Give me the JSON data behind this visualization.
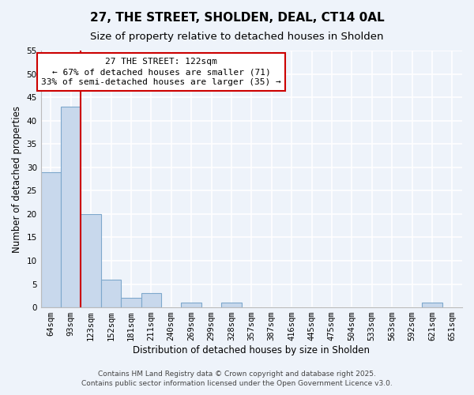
{
  "title": "27, THE STREET, SHOLDEN, DEAL, CT14 0AL",
  "subtitle": "Size of property relative to detached houses in Sholden",
  "xlabel": "Distribution of detached houses by size in Sholden",
  "ylabel": "Number of detached properties",
  "categories": [
    "64sqm",
    "93sqm",
    "123sqm",
    "152sqm",
    "181sqm",
    "211sqm",
    "240sqm",
    "269sqm",
    "299sqm",
    "328sqm",
    "357sqm",
    "387sqm",
    "416sqm",
    "445sqm",
    "475sqm",
    "504sqm",
    "533sqm",
    "563sqm",
    "592sqm",
    "621sqm",
    "651sqm"
  ],
  "values": [
    29,
    43,
    20,
    6,
    2,
    3,
    0,
    1,
    0,
    1,
    0,
    0,
    0,
    0,
    0,
    0,
    0,
    0,
    0,
    1,
    0
  ],
  "bar_color": "#c8d8ec",
  "bar_edge_color": "#7ea8cc",
  "highlight_line_color": "#cc0000",
  "annotation_title": "27 THE STREET: 122sqm",
  "annotation_line1": "← 67% of detached houses are smaller (71)",
  "annotation_line2": "33% of semi-detached houses are larger (35) →",
  "annotation_box_color": "#ffffff",
  "annotation_box_edge": "#cc0000",
  "ylim": [
    0,
    55
  ],
  "yticks": [
    0,
    5,
    10,
    15,
    20,
    25,
    30,
    35,
    40,
    45,
    50,
    55
  ],
  "footer1": "Contains HM Land Registry data © Crown copyright and database right 2025.",
  "footer2": "Contains public sector information licensed under the Open Government Licence v3.0.",
  "bg_color": "#eef3fa",
  "plot_bg_color": "#eef3fa",
  "grid_color": "#ffffff",
  "title_fontsize": 11,
  "subtitle_fontsize": 9.5,
  "axis_label_fontsize": 8.5,
  "tick_fontsize": 7.5,
  "annotation_fontsize": 8,
  "footer_fontsize": 6.5
}
